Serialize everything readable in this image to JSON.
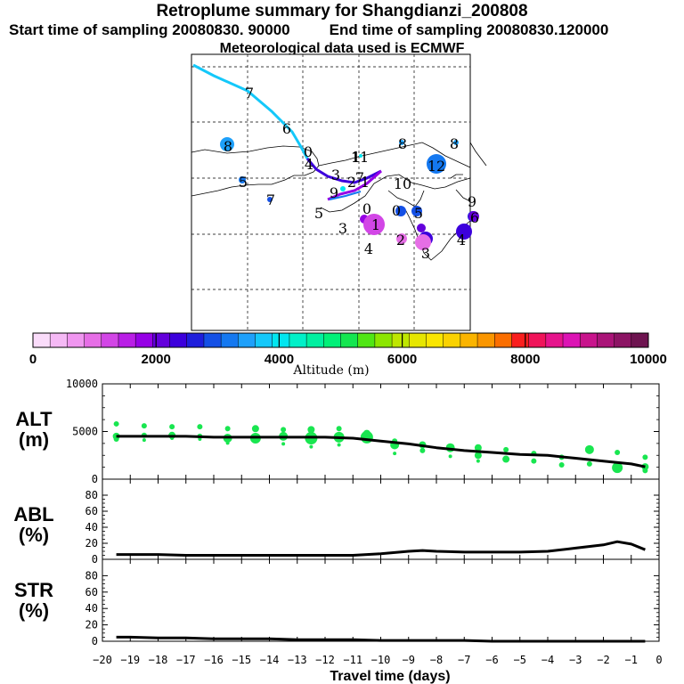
{
  "header": {
    "title": "Retroplume summary for Shangdianzi_200808",
    "start": "Start time of sampling 20080830. 90000",
    "end": "End time of sampling 20080830.120000",
    "met": "Meteorological data used is ECMWF"
  },
  "colorbar": {
    "colors": [
      "#fadcfa",
      "#f5b9f5",
      "#f096f0",
      "#e66ee6",
      "#d246e6",
      "#b91ee6",
      "#9600e6",
      "#6400dc",
      "#3c00dc",
      "#1e1edc",
      "#1450e6",
      "#1478f0",
      "#1ea0fa",
      "#14c8fa",
      "#00e6f0",
      "#00f0c8",
      "#00f0a0",
      "#00f078",
      "#14e650",
      "#50e614",
      "#8ce600",
      "#bee600",
      "#e6e600",
      "#fae600",
      "#fad200",
      "#fab400",
      "#fa9600",
      "#fa6e00",
      "#fa1e1e",
      "#f0145a",
      "#e6148c",
      "#dc14b4",
      "#c8148c",
      "#aa1478",
      "#8c1464",
      "#6e1450"
    ],
    "ticks": [
      "0",
      "2000",
      "4000",
      "6000",
      "8000",
      "10000"
    ],
    "label": "Altitude (m)"
  },
  "map": {
    "trajectory_numbers": [
      "7",
      "6",
      "0",
      "4",
      "3",
      "2",
      "1",
      "8",
      "5",
      "7",
      "9",
      "8",
      "1",
      "11",
      "10",
      "8",
      "12",
      "7",
      "0",
      "5",
      "3",
      "4",
      "2",
      "9",
      "6",
      "5",
      "3",
      "4",
      "0",
      "1"
    ],
    "blobs": [
      {
        "num": "8",
        "color": "#1ea0fa",
        "r": 8
      },
      {
        "num": "5",
        "color": "#1478f0",
        "r": 4
      },
      {
        "num": "7",
        "color": "#1450e6",
        "r": 3
      },
      {
        "num": "9",
        "color": "#1e1edc",
        "r": 6
      },
      {
        "num": "5",
        "color": "#9600e6",
        "r": 5
      },
      {
        "num": "6",
        "color": "#6400dc",
        "r": 6
      },
      {
        "num": "1",
        "color": "#d246e6",
        "r": 12
      },
      {
        "num": "4",
        "color": "#1450e6",
        "r": 6
      },
      {
        "num": "3",
        "color": "#1450e6",
        "r": 6
      },
      {
        "num": "2",
        "color": "#6400dc",
        "r": 5
      },
      {
        "num": "7",
        "color": "#1478f0",
        "r": 11
      },
      {
        "num": "12",
        "color": "#1ea0fa",
        "r": 3
      },
      {
        "num": "6",
        "color": "#3c00dc",
        "r": 9
      },
      {
        "num": "5",
        "color": "#3c00dc",
        "r": 8
      },
      {
        "num": "2",
        "color": "#e66ee6",
        "r": 6
      },
      {
        "num": "3",
        "color": "#e66ee6",
        "r": 9
      },
      {
        "num": "8",
        "color": "#1ea0fa",
        "r": 3
      },
      {
        "num": "5",
        "color": "#00e6f0",
        "r": 3
      },
      {
        "num": "11",
        "color": "#00e6f0",
        "r": 2
      }
    ]
  },
  "chart_data": [
    {
      "type": "line",
      "panel": "ALT",
      "ylabel": "ALT\n(m)",
      "ylim": [
        0,
        10000
      ],
      "yticks": [
        0,
        5000,
        10000
      ],
      "x": [
        -19.5,
        -19,
        -18,
        -17,
        -16,
        -15,
        -14,
        -13,
        -12,
        -11,
        -10,
        -9,
        -8,
        -7,
        -6,
        -5,
        -4,
        -3,
        -2,
        -1,
        -0.5
      ],
      "values": [
        4500,
        4500,
        4500,
        4500,
        4400,
        4400,
        4400,
        4400,
        4400,
        4300,
        4000,
        3700,
        3300,
        3000,
        2800,
        2600,
        2500,
        2200,
        1900,
        1600,
        1300
      ],
      "scatter_x": [
        -19.5,
        -19.5,
        -19.5,
        -18.5,
        -18.5,
        -18.5,
        -17.5,
        -17.5,
        -17.5,
        -16.5,
        -16.5,
        -16.5,
        -15.5,
        -15.5,
        -15.5,
        -14.5,
        -14.5,
        -13.5,
        -13.5,
        -13.5,
        -12.5,
        -12.5,
        -12.5,
        -11.5,
        -11.5,
        -11.5,
        -10.5,
        -10.5,
        -9.5,
        -9.5,
        -9.5,
        -8.5,
        -8.5,
        -7.5,
        -7.5,
        -6.5,
        -6.5,
        -6.5,
        -5.5,
        -5.5,
        -4.5,
        -4.5,
        -3.5,
        -3.5,
        -2.5,
        -2.5,
        -1.5,
        -1.5,
        -0.5,
        -0.5,
        -0.5
      ],
      "scatter_y": [
        5800,
        4500,
        4200,
        5600,
        4600,
        4100,
        5500,
        4600,
        4300,
        5500,
        4500,
        4200,
        5300,
        4300,
        3800,
        5300,
        4300,
        5200,
        4500,
        3700,
        5200,
        4300,
        3400,
        5300,
        4400,
        3600,
        4800,
        4400,
        4000,
        3600,
        2700,
        3600,
        3000,
        3300,
        2400,
        3300,
        2500,
        1900,
        3100,
        2100,
        2700,
        1900,
        2300,
        1500,
        3100,
        1600,
        2800,
        1200,
        2300,
        1300,
        900
      ],
      "scatter_r": [
        3,
        4,
        3,
        3,
        3,
        2,
        3,
        4,
        2,
        3,
        3,
        2,
        3,
        5,
        2,
        4,
        6,
        3,
        5,
        2,
        4,
        7,
        2,
        3,
        6,
        2,
        4,
        7,
        3,
        5,
        2,
        4,
        3,
        5,
        2,
        4,
        4,
        2,
        3,
        4,
        3,
        3,
        3,
        3,
        5,
        3,
        3,
        6,
        3,
        4,
        3
      ]
    },
    {
      "type": "line",
      "panel": "ABL",
      "ylabel": "ABL\n(%)",
      "ylim": [
        0,
        100
      ],
      "yticks": [
        0,
        20,
        40,
        60,
        80
      ],
      "x": [
        -19.5,
        -19,
        -18,
        -17,
        -16,
        -15,
        -14,
        -13,
        -12,
        -11,
        -10,
        -9,
        -8.5,
        -8,
        -7,
        -6,
        -5,
        -4,
        -3,
        -2,
        -1.5,
        -1,
        -0.5
      ],
      "values": [
        6,
        6,
        6,
        5,
        5,
        5,
        5,
        5,
        5,
        5,
        7,
        10,
        11,
        10,
        9,
        9,
        9,
        10,
        14,
        18,
        22,
        19,
        12
      ]
    },
    {
      "type": "line",
      "panel": "STR",
      "ylabel": "STR\n(%)",
      "ylim": [
        0,
        100
      ],
      "yticks": [
        0,
        20,
        40,
        60,
        80
      ],
      "x": [
        -19.5,
        -19,
        -18,
        -17,
        -16,
        -15,
        -14,
        -13,
        -12,
        -11,
        -10,
        -9,
        -8,
        -7,
        -6,
        -5,
        -4,
        -3,
        -2,
        -1,
        -0.5
      ],
      "values": [
        5,
        5,
        4,
        4,
        3,
        3,
        3,
        2,
        2,
        2,
        1,
        1,
        1,
        1,
        0,
        0,
        0,
        0,
        0,
        0,
        0
      ]
    }
  ],
  "xaxis": {
    "xlim": [
      -20,
      0
    ],
    "tick_labels": [
      "−20",
      "−19",
      "−18",
      "−17",
      "−16",
      "−15",
      "−14",
      "−13",
      "−12",
      "−11",
      "−10",
      "−9",
      "−8",
      "−7",
      "−6",
      "−5",
      "−4",
      "−3",
      "−2",
      "−1",
      "0"
    ],
    "xlabel": "Travel time (days)"
  },
  "panel_labels": {
    "alt_title": "ALT",
    "alt_unit": "(m)",
    "abl_title": "ABL",
    "abl_unit": "(%)",
    "str_title": "STR",
    "str_unit": "(%)"
  },
  "line_color": "#000000",
  "scatter_color": "#19e650"
}
